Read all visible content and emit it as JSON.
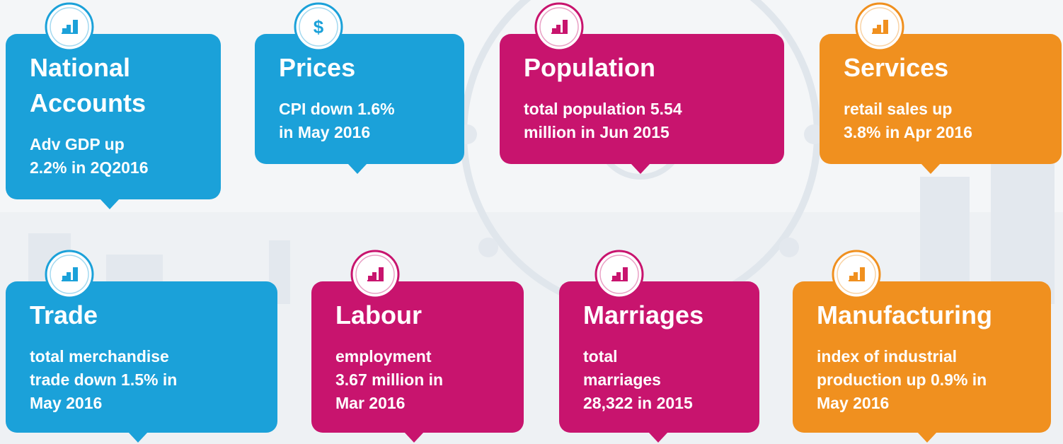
{
  "tiles": [
    {
      "title": [
        "National",
        "Accounts"
      ],
      "text": [
        "Adv GDP up",
        "2.2% in 2Q2016"
      ]
    },
    {
      "title": [
        "Prices"
      ],
      "text": [
        "CPI down 1.6%",
        "in May 2016"
      ],
      "icon_text": "$"
    },
    {
      "title": [
        "Population"
      ],
      "text": [
        "total population 5.54",
        "million in Jun 2015"
      ]
    },
    {
      "title": [
        "Services"
      ],
      "text": [
        "retail sales up",
        "3.8% in Apr 2016"
      ]
    },
    {
      "title": [
        "Trade"
      ],
      "text": [
        "total merchandise",
        "trade down 1.5% in",
        "May 2016"
      ]
    },
    {
      "title": [
        "Labour"
      ],
      "text": [
        "employment",
        "3.67 million in",
        "Mar 2016"
      ]
    },
    {
      "title": [
        "Marriages"
      ],
      "text": [
        "total",
        "marriages",
        "28,322 in 2015"
      ]
    },
    {
      "title": [
        "Manufacturing"
      ],
      "text": [
        "index of industrial",
        "production up 0.9% in",
        "May 2016"
      ]
    }
  ]
}
